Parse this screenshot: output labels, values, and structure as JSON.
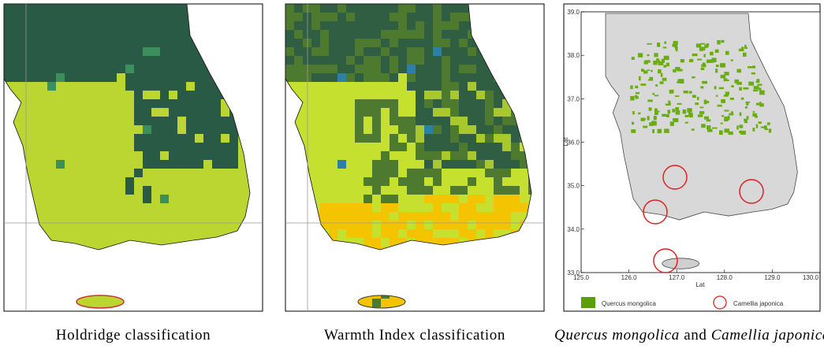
{
  "panels": [
    {
      "caption": "Holdridge classification"
    },
    {
      "caption": "Warmth Index classification"
    },
    {
      "caption_parts": [
        "Quercus mongolica",
        "and",
        "Camellia japonica"
      ],
      "y_axis_label": "Lat",
      "x_axis_label": "Lat",
      "yticks": [
        "39.0",
        "38.0",
        "37.0",
        "36.0",
        "35.0",
        "34.0",
        "33.0"
      ],
      "xticks": [
        "125.0",
        "126.0",
        "127.0",
        "128.0",
        "129.0",
        "130.0"
      ],
      "legend": [
        "Quercus mongolica",
        "Camellia japonica"
      ]
    }
  ]
}
